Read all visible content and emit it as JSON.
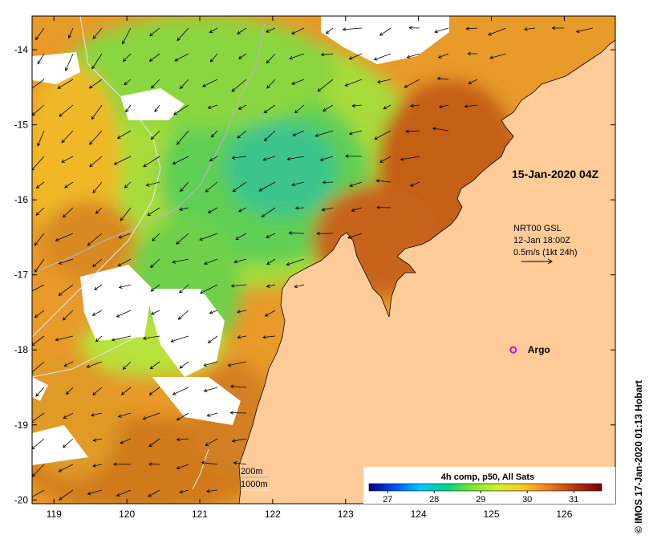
{
  "map": {
    "date_label": "15-Jan-2020 04Z",
    "lon_ticks": [
      "119",
      "120",
      "121",
      "122",
      "123",
      "124",
      "125",
      "126"
    ],
    "lat_ticks": [
      "-14",
      "-15",
      "-16",
      "-17",
      "-18",
      "-19",
      "-20"
    ],
    "lon_range": [
      118.7,
      126.7
    ],
    "lat_range": [
      -20.05,
      -13.55
    ],
    "currents_legend": {
      "line1": "NRT00 GSL",
      "line2": "12-Jan 18:00Z",
      "line3": "0.5m/s (1kt 24h)"
    },
    "argo_label": "Argo",
    "argo_position": {
      "lon": 125.3,
      "lat": -18.0
    },
    "bathymetry_legend": {
      "line1": "200m",
      "line2": "1000m"
    },
    "colorbar": {
      "title": "4h comp, p50, All Sats",
      "ticks": [
        "27",
        "28",
        "29",
        "30",
        "31"
      ],
      "range": [
        26.6,
        31.6
      ],
      "colors": [
        "#000080",
        "#0050ff",
        "#00c8ff",
        "#00d28c",
        "#78e632",
        "#d2f02d",
        "#ffc81e",
        "#e6781e",
        "#b43214",
        "#780000"
      ]
    },
    "credit": "© IMOS 17-Jan-2020 01:13 Hobart",
    "colors": {
      "land": "#ffcc99",
      "sst_warm": "#c05a14",
      "sst_cool": "#3cc878"
    }
  }
}
